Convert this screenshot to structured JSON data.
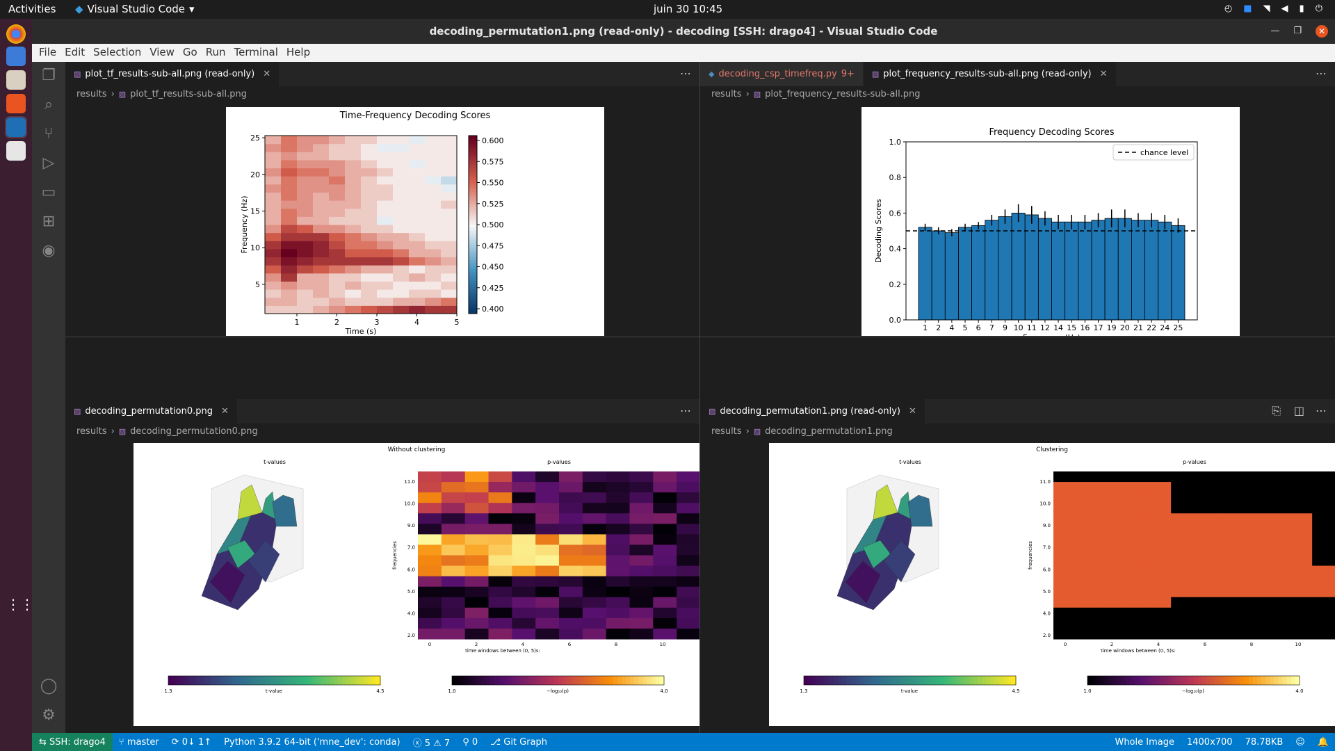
{
  "topbar": {
    "activities": "Activities",
    "app_name": "Visual Studio Code",
    "clock": "juin 30  10:45"
  },
  "window": {
    "title": "decoding_permutation1.png (read-only) - decoding [SSH: drago4] - Visual Studio Code"
  },
  "menu": [
    "File",
    "Edit",
    "Selection",
    "View",
    "Go",
    "Run",
    "Terminal",
    "Help"
  ],
  "groups": {
    "tl": {
      "tabs": [
        {
          "label": "plot_tf_results-sub-all.png (read-only)"
        }
      ],
      "crumb_folder": "results",
      "crumb_file": "plot_tf_results-sub-all.png"
    },
    "tr": {
      "tabs": [
        {
          "label": "decoding_csp_timefreq.py",
          "badge": "9+"
        },
        {
          "label": "plot_frequency_results-sub-all.png (read-only)"
        }
      ],
      "crumb_folder": "results",
      "crumb_file": "plot_frequency_results-sub-all.png"
    },
    "bl": {
      "tabs": [
        {
          "label": "decoding_permutation0.png"
        }
      ],
      "crumb_folder": "results",
      "crumb_file": "decoding_permutation0.png"
    },
    "br": {
      "tabs": [
        {
          "label": "decoding_permutation1.png (read-only)"
        }
      ],
      "crumb_folder": "results",
      "crumb_file": "decoding_permutation1.png"
    }
  },
  "chart_data": [
    {
      "type": "heatmap",
      "title": "Time-Frequency Decoding Scores",
      "xlabel": "Time (s)",
      "ylabel": "Frequency (Hz)",
      "xticks": [
        "1",
        "2",
        "3",
        "4",
        "5"
      ],
      "yticks": [
        "5",
        "10",
        "15",
        "20",
        "25"
      ],
      "colorbar_ticks": [
        "0.600",
        "0.575",
        "0.550",
        "0.525",
        "0.500",
        "0.475",
        "0.450",
        "0.425",
        "0.400"
      ],
      "colormap": "RdBu_r",
      "vmin": 0.4,
      "vmax": 0.61,
      "rows_low_to_high_freq": [
        [
          0.52,
          0.52,
          0.52,
          0.53,
          0.54,
          0.55,
          0.56,
          0.57,
          0.58,
          0.59,
          0.58,
          0.58
        ],
        [
          0.53,
          0.53,
          0.52,
          0.52,
          0.53,
          0.52,
          0.52,
          0.52,
          0.53,
          0.53,
          0.54,
          0.55
        ],
        [
          0.52,
          0.53,
          0.52,
          0.53,
          0.52,
          0.51,
          0.52,
          0.51,
          0.51,
          0.52,
          0.52,
          0.51
        ],
        [
          0.53,
          0.54,
          0.53,
          0.53,
          0.52,
          0.53,
          0.52,
          0.52,
          0.51,
          0.51,
          0.51,
          0.52
        ],
        [
          0.54,
          0.58,
          0.53,
          0.53,
          0.52,
          0.52,
          0.51,
          0.51,
          0.52,
          0.53,
          0.52,
          0.51
        ],
        [
          0.56,
          0.59,
          0.57,
          0.56,
          0.55,
          0.54,
          0.53,
          0.53,
          0.52,
          0.51,
          0.52,
          0.52
        ],
        [
          0.58,
          0.6,
          0.59,
          0.58,
          0.58,
          0.58,
          0.58,
          0.58,
          0.57,
          0.55,
          0.54,
          0.53
        ],
        [
          0.59,
          0.61,
          0.6,
          0.59,
          0.58,
          0.56,
          0.56,
          0.56,
          0.55,
          0.53,
          0.53,
          0.52
        ],
        [
          0.58,
          0.6,
          0.6,
          0.59,
          0.57,
          0.55,
          0.55,
          0.54,
          0.53,
          0.53,
          0.52,
          0.52
        ],
        [
          0.56,
          0.58,
          0.58,
          0.58,
          0.56,
          0.55,
          0.54,
          0.53,
          0.53,
          0.52,
          0.51,
          0.51
        ],
        [
          0.54,
          0.57,
          0.56,
          0.54,
          0.54,
          0.53,
          0.52,
          0.52,
          0.51,
          0.51,
          0.51,
          0.51
        ],
        [
          0.53,
          0.55,
          0.53,
          0.53,
          0.52,
          0.52,
          0.52,
          0.5,
          0.51,
          0.51,
          0.51,
          0.51
        ],
        [
          0.53,
          0.55,
          0.54,
          0.53,
          0.53,
          0.52,
          0.52,
          0.51,
          0.51,
          0.51,
          0.51,
          0.51
        ],
        [
          0.53,
          0.54,
          0.54,
          0.53,
          0.53,
          0.53,
          0.52,
          0.51,
          0.51,
          0.51,
          0.51,
          0.52
        ],
        [
          0.53,
          0.55,
          0.54,
          0.53,
          0.54,
          0.53,
          0.52,
          0.52,
          0.51,
          0.51,
          0.51,
          0.51
        ],
        [
          0.54,
          0.55,
          0.54,
          0.54,
          0.54,
          0.53,
          0.52,
          0.52,
          0.51,
          0.51,
          0.51,
          0.5
        ],
        [
          0.53,
          0.55,
          0.54,
          0.54,
          0.55,
          0.53,
          0.52,
          0.51,
          0.51,
          0.51,
          0.5,
          0.49
        ],
        [
          0.54,
          0.56,
          0.55,
          0.55,
          0.54,
          0.53,
          0.53,
          0.52,
          0.51,
          0.51,
          0.51,
          0.51
        ],
        [
          0.53,
          0.55,
          0.54,
          0.54,
          0.54,
          0.53,
          0.52,
          0.51,
          0.51,
          0.5,
          0.51,
          0.51
        ],
        [
          0.53,
          0.54,
          0.53,
          0.53,
          0.52,
          0.52,
          0.51,
          0.51,
          0.51,
          0.51,
          0.51,
          0.51
        ],
        [
          0.54,
          0.55,
          0.54,
          0.53,
          0.52,
          0.52,
          0.51,
          0.5,
          0.5,
          0.51,
          0.51,
          0.51
        ],
        [
          0.53,
          0.55,
          0.54,
          0.54,
          0.53,
          0.52,
          0.52,
          0.51,
          0.51,
          0.5,
          0.51,
          0.51
        ]
      ]
    },
    {
      "type": "bar",
      "title": "Frequency Decoding Scores",
      "xlabel": "Frequency (Hz)",
      "ylabel": "Decoding Scores",
      "ylim": [
        0,
        1
      ],
      "yticks": [
        "0.0",
        "0.2",
        "0.4",
        "0.6",
        "0.8",
        "1.0"
      ],
      "categories": [
        "1",
        "2",
        "4",
        "5",
        "6",
        "7",
        "9",
        "10",
        "11",
        "12",
        "14",
        "15",
        "16",
        "17",
        "19",
        "20",
        "21",
        "22",
        "24",
        "25"
      ],
      "values": [
        0.52,
        0.5,
        0.49,
        0.52,
        0.53,
        0.56,
        0.58,
        0.6,
        0.59,
        0.57,
        0.55,
        0.55,
        0.55,
        0.56,
        0.57,
        0.57,
        0.56,
        0.56,
        0.55,
        0.53
      ],
      "errors": [
        0.02,
        0.02,
        0.02,
        0.02,
        0.02,
        0.03,
        0.04,
        0.05,
        0.05,
        0.04,
        0.04,
        0.04,
        0.04,
        0.04,
        0.05,
        0.05,
        0.04,
        0.04,
        0.04,
        0.04
      ],
      "chance_level": 0.5,
      "legend": [
        "chance level"
      ],
      "bar_color": "#1f77b4"
    },
    {
      "type": "heatmap",
      "title": "Without clustering",
      "panels": [
        "t-values",
        "p-values"
      ],
      "ylabel": "frequencies",
      "xlabel": "time windows between (0, 5)s:",
      "xticks": [
        "0",
        "2",
        "4",
        "6",
        "8",
        "10"
      ],
      "yticks": [
        "2.0",
        "4.0",
        "5.0",
        "6.0",
        "7.0",
        "9.0",
        "10.0",
        "11.0"
      ],
      "colorbar_left": {
        "label": "t-value",
        "min": "1.3",
        "max": "4.5"
      },
      "colorbar_right": {
        "label": "−log₁₀(p)",
        "min": "1.0",
        "max": "4.0"
      }
    },
    {
      "type": "heatmap",
      "title": "Clustering",
      "panels": [
        "t-values",
        "p-values"
      ],
      "ylabel": "frequencies",
      "xlabel": "time windows between (0, 5)s:",
      "xticks": [
        "0",
        "2",
        "4",
        "6",
        "8",
        "10"
      ],
      "yticks": [
        "2.0",
        "4.0",
        "5.0",
        "6.0",
        "7.0",
        "9.0",
        "10.0",
        "11.0"
      ],
      "colorbar_left": {
        "label": "t-value",
        "min": "1.3",
        "max": "4.5"
      },
      "colorbar_right": {
        "label": "−log₁₀(p)",
        "min": "1.0",
        "max": "4.0"
      }
    }
  ],
  "statusbar": {
    "remote": "SSH: drago4",
    "branch": "master",
    "sync": "0↓ 1↑",
    "python": "Python 3.9.2 64-bit ('mne_dev': conda)",
    "problems": "ⓧ 5 ⚠ 7",
    "ports": "0",
    "git_graph": "Git Graph",
    "whole_image": "Whole Image",
    "dimensions": "1400x700",
    "size": "78.78KB"
  }
}
